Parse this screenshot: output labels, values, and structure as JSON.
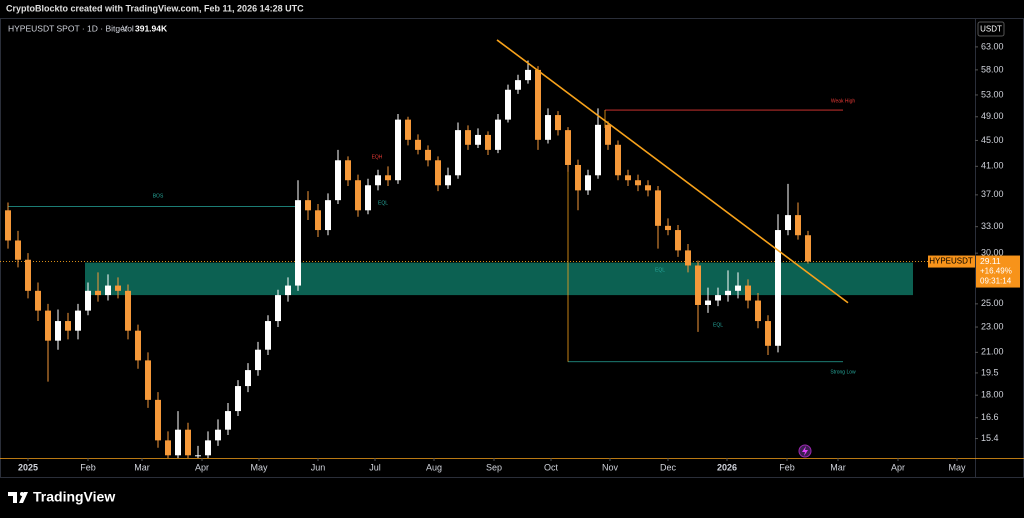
{
  "caption": "CryptoBlockto created with TradingView.com, Feb 11, 2026 14:28 UTC",
  "brand": "TradingView",
  "chart_data": {
    "type": "candlestick",
    "title": "HYPEUSDT SPOT · 1D · Bitget",
    "volume_label": "Vol",
    "volume": "391.94K",
    "currency": "USDT",
    "symbol": "HYPEUSDT",
    "last_price": 29.11,
    "change_pct": 16.49,
    "change_label": "+16.49%",
    "countdown": "09:31:14",
    "log_scale": true,
    "up_color": "#ffffff",
    "down_color": "#f5993a",
    "ylim": [
      14.36,
      69.9
    ],
    "yticks": [
      {
        "value": 63,
        "label": "63.00"
      },
      {
        "value": 58,
        "label": "58.00"
      },
      {
        "value": 53,
        "label": "53.00"
      },
      {
        "value": 49,
        "label": "49.00"
      },
      {
        "value": 45,
        "label": "45.00"
      },
      {
        "value": 41,
        "label": "41.00"
      },
      {
        "value": 37,
        "label": "37.00"
      },
      {
        "value": 33,
        "label": "33.00"
      },
      {
        "value": 30,
        "label": "30.00"
      },
      {
        "value": 25,
        "label": "25.00"
      },
      {
        "value": 23,
        "label": "23.00"
      },
      {
        "value": 21,
        "label": "21.00"
      },
      19.5,
      {
        "value": 18,
        "label": "18.00"
      },
      16.6,
      15.4
    ],
    "xlim": [
      -0.8,
      96.7
    ],
    "xticks": [
      {
        "value": 2,
        "label": "2025"
      },
      {
        "value": 8,
        "label": "Feb"
      },
      {
        "value": 13.4,
        "label": "Mar"
      },
      {
        "value": 19.4,
        "label": "Apr"
      },
      {
        "value": 25.1,
        "label": "May"
      },
      {
        "value": 31,
        "label": "Jun"
      },
      {
        "value": 36.7,
        "label": "Jul"
      },
      {
        "value": 42.6,
        "label": "Aug"
      },
      {
        "value": 48.6,
        "label": "Sep"
      },
      {
        "value": 54.3,
        "label": "Oct"
      },
      {
        "value": 60.2,
        "label": "Nov"
      },
      {
        "value": 66,
        "label": "Dec"
      },
      {
        "value": 71.9,
        "label": "2026"
      },
      {
        "value": 77.9,
        "label": "Feb"
      },
      {
        "value": 83,
        "label": "Mar"
      },
      {
        "value": 89,
        "label": "Apr"
      },
      {
        "value": 94.9,
        "label": "May"
      }
    ],
    "candles": {
      "open": [
        35.0,
        31.4,
        29.3,
        26.2,
        24.4,
        21.9,
        23.5,
        22.7,
        24.4,
        26.2,
        25.8,
        26.7,
        26.2,
        22.7,
        20.4,
        17.7,
        15.3,
        14.5,
        15.9,
        14.5,
        14.5,
        15.3,
        15.9,
        17.0,
        18.6,
        19.7,
        21.2,
        23.5,
        25.8,
        26.7,
        36.3,
        35.0,
        32.6,
        36.3,
        41.9,
        39.0,
        35.0,
        38.3,
        39.7,
        39.0,
        48.5,
        45.1,
        43.5,
        41.9,
        38.3,
        39.7,
        46.7,
        44.3,
        45.9,
        43.5,
        48.5,
        54.0,
        55.9,
        58.0,
        45.1,
        49.3,
        46.7,
        41.2,
        37.6,
        39.7,
        47.6,
        44.3,
        39.7,
        39.0,
        38.3,
        37.6,
        33.1,
        32.6,
        30.3,
        28.7,
        24.9,
        25.3,
        25.8,
        26.2,
        26.7,
        25.3,
        23.5,
        21.5,
        32.6,
        34.4,
        32.0
      ],
      "high": [
        36.0,
        32.5,
        30.0,
        27.0,
        25.0,
        24.5,
        24.2,
        25.0,
        27.0,
        28.0,
        27.8,
        27.5,
        26.8,
        23.2,
        21.0,
        18.2,
        15.8,
        17.0,
        16.3,
        15.0,
        15.8,
        16.5,
        17.5,
        19.0,
        20.2,
        21.8,
        24.0,
        26.3,
        27.5,
        39.0,
        37.5,
        35.8,
        37.2,
        43.5,
        42.5,
        39.8,
        39.2,
        40.5,
        41.0,
        49.5,
        49.0,
        46.0,
        44.2,
        42.5,
        40.8,
        48.0,
        47.5,
        47.0,
        46.5,
        49.5,
        55.0,
        57.0,
        60.0,
        58.8,
        50.5,
        50.0,
        47.2,
        42.0,
        40.5,
        50.5,
        48.2,
        45.0,
        40.5,
        39.8,
        39.0,
        38.2,
        34.0,
        33.2,
        31.0,
        29.2,
        26.5,
        26.5,
        28.2,
        28.0,
        27.3,
        26.0,
        24.0,
        34.5,
        38.5,
        36.0,
        32.5
      ],
      "low": [
        30.5,
        28.5,
        25.5,
        23.5,
        18.9,
        21.2,
        22.0,
        22.0,
        24.0,
        25.2,
        25.3,
        25.5,
        22.0,
        19.8,
        17.2,
        14.9,
        14.3,
        14.2,
        14.2,
        14.2,
        14.3,
        15.0,
        15.6,
        16.7,
        18.2,
        19.3,
        20.8,
        23.0,
        25.2,
        26.2,
        33.8,
        31.8,
        32.0,
        35.8,
        38.2,
        34.2,
        34.5,
        37.6,
        38.2,
        38.5,
        44.2,
        42.8,
        41.0,
        37.5,
        37.8,
        39.2,
        43.5,
        43.8,
        42.7,
        43.0,
        48.0,
        53.2,
        55.2,
        43.5,
        44.5,
        45.8,
        40.2,
        35.0,
        37.0,
        39.2,
        43.5,
        39.0,
        38.2,
        37.5,
        36.8,
        30.5,
        32.0,
        29.6,
        28.0,
        22.6,
        24.2,
        24.8,
        25.2,
        25.5,
        24.6,
        22.9,
        20.8,
        21.0,
        32.0,
        31.5,
        28.9
      ],
      "close": [
        31.4,
        29.3,
        26.2,
        24.4,
        21.9,
        23.5,
        22.7,
        24.4,
        26.2,
        25.8,
        26.7,
        26.2,
        22.7,
        20.4,
        17.7,
        15.3,
        14.5,
        15.9,
        14.5,
        14.5,
        15.3,
        15.9,
        17.0,
        18.6,
        19.7,
        21.2,
        23.5,
        25.8,
        26.7,
        36.3,
        35.0,
        32.6,
        36.3,
        41.9,
        39.0,
        35.0,
        38.3,
        39.7,
        39.0,
        48.5,
        45.1,
        43.5,
        41.9,
        38.3,
        39.7,
        46.7,
        44.3,
        45.9,
        43.5,
        48.5,
        54.0,
        55.9,
        58.0,
        45.1,
        49.3,
        46.7,
        41.2,
        37.6,
        39.7,
        47.6,
        44.3,
        39.7,
        39.0,
        38.3,
        37.6,
        33.1,
        32.6,
        30.3,
        28.7,
        24.9,
        25.3,
        25.8,
        26.2,
        26.7,
        25.3,
        23.5,
        21.5,
        32.6,
        34.4,
        32.0,
        29.11
      ]
    },
    "zone": [
      25.8,
      29.0
    ],
    "zone_color": "#0d6b5b",
    "bos_level": 35.5,
    "weak_high": 50.2,
    "strong_low": 20.3,
    "trendline": {
      "x": [
        48.9,
        84
      ],
      "y": [
        64.6,
        25.1
      ],
      "color": "#f7a21b"
    },
    "labels": [
      "BOS",
      "EQH",
      "EQL",
      "Weak High",
      "EQL",
      "EQL",
      "Strong Low"
    ]
  }
}
